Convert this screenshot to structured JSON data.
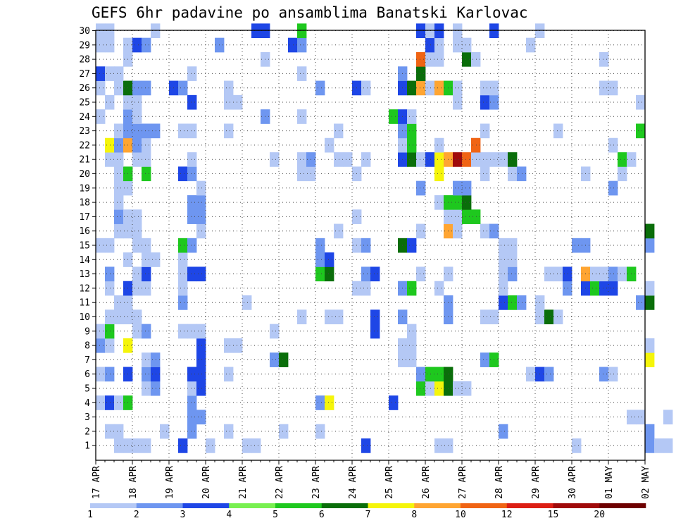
{
  "chart_data": {
    "type": "heatmap",
    "title": "GEFS 6hr padavine po ansamblima Banatski Karlovac",
    "y_ticks": [
      1,
      2,
      3,
      4,
      5,
      6,
      7,
      8,
      9,
      10,
      11,
      12,
      13,
      14,
      15,
      16,
      17,
      18,
      19,
      20,
      21,
      22,
      23,
      24,
      25,
      26,
      27,
      28,
      29,
      30
    ],
    "ylim": [
      0,
      30
    ],
    "x_ticks": [
      "17 APR",
      "18 APR",
      "19 APR",
      "20 APR",
      "21 APR",
      "22 APR",
      "23 APR",
      "24 APR",
      "25 APR",
      "26 APR",
      "27 APR",
      "28 APR",
      "29 APR",
      "30 APR",
      "01 MAY",
      "02 MAY"
    ],
    "x_steps_per_day": 4,
    "grid": true,
    "colorbar": {
      "levels": [
        "1",
        "2",
        "3",
        "4",
        "5",
        "6",
        "7",
        "8",
        "10",
        "12",
        "15",
        "20"
      ],
      "colors": [
        "#b4c8f5",
        "#6e96f0",
        "#1e46e6",
        "#78f050",
        "#1ec81e",
        "#0a6e0a",
        "#f5f50a",
        "#ffa532",
        "#f06414",
        "#dc1e14",
        "#a00a0a",
        "#6e0000"
      ]
    },
    "cells": [
      [
        1,
        2,
        1
      ],
      [
        1,
        3,
        1
      ],
      [
        1,
        4,
        1
      ],
      [
        1,
        5,
        1
      ],
      [
        1,
        9,
        3
      ],
      [
        1,
        12,
        1
      ],
      [
        1,
        16,
        1
      ],
      [
        1,
        17,
        1
      ],
      [
        1,
        29,
        3
      ],
      [
        1,
        37,
        1
      ],
      [
        1,
        38,
        1
      ],
      [
        1,
        52,
        1
      ],
      [
        1,
        60,
        2
      ],
      [
        1,
        61,
        1
      ],
      [
        1,
        62,
        1
      ],
      [
        1,
        70,
        7
      ],
      [
        1,
        71,
        1
      ],
      [
        2,
        1,
        1
      ],
      [
        2,
        2,
        1
      ],
      [
        2,
        7,
        1
      ],
      [
        2,
        10,
        2
      ],
      [
        2,
        14,
        1
      ],
      [
        2,
        20,
        1
      ],
      [
        2,
        24,
        1
      ],
      [
        2,
        44,
        2
      ],
      [
        2,
        60,
        2
      ],
      [
        3,
        10,
        2
      ],
      [
        3,
        11,
        2
      ],
      [
        3,
        58,
        1
      ],
      [
        3,
        59,
        1
      ],
      [
        3,
        62,
        1
      ],
      [
        4,
        0,
        1
      ],
      [
        4,
        1,
        3
      ],
      [
        4,
        2,
        1
      ],
      [
        4,
        3,
        5
      ],
      [
        4,
        10,
        2
      ],
      [
        4,
        24,
        2
      ],
      [
        4,
        25,
        7
      ],
      [
        4,
        32,
        3
      ],
      [
        5,
        5,
        1
      ],
      [
        5,
        6,
        2
      ],
      [
        5,
        10,
        1
      ],
      [
        5,
        11,
        3
      ],
      [
        5,
        35,
        5
      ],
      [
        5,
        36,
        1
      ],
      [
        5,
        37,
        7
      ],
      [
        5,
        38,
        6
      ],
      [
        5,
        39,
        1
      ],
      [
        5,
        40,
        1
      ],
      [
        6,
        0,
        1
      ],
      [
        6,
        1,
        2
      ],
      [
        6,
        3,
        3
      ],
      [
        6,
        5,
        2
      ],
      [
        6,
        6,
        3
      ],
      [
        6,
        10,
        3
      ],
      [
        6,
        11,
        3
      ],
      [
        6,
        14,
        1
      ],
      [
        6,
        35,
        2
      ],
      [
        6,
        36,
        5
      ],
      [
        6,
        37,
        5
      ],
      [
        6,
        38,
        6
      ],
      [
        6,
        47,
        1
      ],
      [
        6,
        48,
        3
      ],
      [
        6,
        49,
        2
      ],
      [
        6,
        55,
        2
      ],
      [
        6,
        56,
        1
      ],
      [
        7,
        5,
        1
      ],
      [
        7,
        6,
        2
      ],
      [
        7,
        11,
        3
      ],
      [
        7,
        19,
        2
      ],
      [
        7,
        20,
        6
      ],
      [
        7,
        33,
        1
      ],
      [
        7,
        34,
        1
      ],
      [
        7,
        42,
        2
      ],
      [
        7,
        43,
        5
      ],
      [
        7,
        60,
        7
      ],
      [
        8,
        0,
        2
      ],
      [
        8,
        1,
        1
      ],
      [
        8,
        3,
        7
      ],
      [
        8,
        11,
        3
      ],
      [
        8,
        14,
        1
      ],
      [
        8,
        15,
        1
      ],
      [
        8,
        33,
        1
      ],
      [
        8,
        34,
        1
      ],
      [
        8,
        60,
        1
      ],
      [
        9,
        0,
        1
      ],
      [
        9,
        1,
        5
      ],
      [
        9,
        4,
        1
      ],
      [
        9,
        5,
        2
      ],
      [
        9,
        9,
        1
      ],
      [
        9,
        10,
        1
      ],
      [
        9,
        11,
        1
      ],
      [
        9,
        19,
        1
      ],
      [
        9,
        30,
        3
      ],
      [
        9,
        34,
        1
      ],
      [
        10,
        1,
        1
      ],
      [
        10,
        2,
        1
      ],
      [
        10,
        3,
        1
      ],
      [
        10,
        4,
        1
      ],
      [
        10,
        22,
        1
      ],
      [
        10,
        25,
        1
      ],
      [
        10,
        26,
        1
      ],
      [
        10,
        30,
        3
      ],
      [
        10,
        33,
        2
      ],
      [
        10,
        38,
        2
      ],
      [
        10,
        42,
        1
      ],
      [
        10,
        43,
        1
      ],
      [
        10,
        48,
        1
      ],
      [
        10,
        49,
        6
      ],
      [
        10,
        50,
        1
      ],
      [
        11,
        2,
        1
      ],
      [
        11,
        3,
        1
      ],
      [
        11,
        9,
        2
      ],
      [
        11,
        16,
        1
      ],
      [
        11,
        38,
        2
      ],
      [
        11,
        44,
        3
      ],
      [
        11,
        45,
        5
      ],
      [
        11,
        46,
        2
      ],
      [
        11,
        48,
        1
      ],
      [
        11,
        59,
        2
      ],
      [
        11,
        60,
        6
      ],
      [
        12,
        1,
        1
      ],
      [
        12,
        3,
        3
      ],
      [
        12,
        4,
        1
      ],
      [
        12,
        5,
        1
      ],
      [
        12,
        9,
        1
      ],
      [
        12,
        28,
        1
      ],
      [
        12,
        29,
        1
      ],
      [
        12,
        33,
        2
      ],
      [
        12,
        34,
        5
      ],
      [
        12,
        37,
        1
      ],
      [
        12,
        44,
        1
      ],
      [
        12,
        51,
        2
      ],
      [
        12,
        53,
        3
      ],
      [
        12,
        54,
        5
      ],
      [
        12,
        55,
        3
      ],
      [
        12,
        56,
        3
      ],
      [
        12,
        60,
        1
      ],
      [
        13,
        1,
        2
      ],
      [
        13,
        4,
        1
      ],
      [
        13,
        5,
        3
      ],
      [
        13,
        9,
        1
      ],
      [
        13,
        10,
        3
      ],
      [
        13,
        11,
        3
      ],
      [
        13,
        24,
        5
      ],
      [
        13,
        25,
        6
      ],
      [
        13,
        29,
        2
      ],
      [
        13,
        30,
        3
      ],
      [
        13,
        35,
        1
      ],
      [
        13,
        38,
        1
      ],
      [
        13,
        44,
        1
      ],
      [
        13,
        45,
        2
      ],
      [
        13,
        49,
        1
      ],
      [
        13,
        50,
        1
      ],
      [
        13,
        51,
        3
      ],
      [
        13,
        53,
        8
      ],
      [
        13,
        54,
        1
      ],
      [
        13,
        55,
        1
      ],
      [
        13,
        56,
        2
      ],
      [
        13,
        57,
        1
      ],
      [
        13,
        58,
        5
      ],
      [
        14,
        3,
        1
      ],
      [
        14,
        5,
        1
      ],
      [
        14,
        6,
        1
      ],
      [
        14,
        9,
        1
      ],
      [
        14,
        24,
        2
      ],
      [
        14,
        25,
        3
      ],
      [
        14,
        44,
        1
      ],
      [
        14,
        45,
        1
      ],
      [
        15,
        0,
        1
      ],
      [
        15,
        1,
        1
      ],
      [
        15,
        4,
        1
      ],
      [
        15,
        5,
        1
      ],
      [
        15,
        9,
        5
      ],
      [
        15,
        10,
        2
      ],
      [
        15,
        24,
        2
      ],
      [
        15,
        28,
        1
      ],
      [
        15,
        29,
        2
      ],
      [
        15,
        33,
        6
      ],
      [
        15,
        34,
        3
      ],
      [
        15,
        44,
        1
      ],
      [
        15,
        45,
        1
      ],
      [
        15,
        52,
        2
      ],
      [
        15,
        53,
        2
      ],
      [
        15,
        60,
        2
      ],
      [
        16,
        2,
        1
      ],
      [
        16,
        3,
        1
      ],
      [
        16,
        4,
        1
      ],
      [
        16,
        11,
        1
      ],
      [
        16,
        26,
        1
      ],
      [
        16,
        35,
        1
      ],
      [
        16,
        38,
        8
      ],
      [
        16,
        39,
        1
      ],
      [
        16,
        42,
        1
      ],
      [
        16,
        43,
        2
      ],
      [
        16,
        60,
        6
      ],
      [
        17,
        2,
        2
      ],
      [
        17,
        3,
        1
      ],
      [
        17,
        4,
        1
      ],
      [
        17,
        10,
        2
      ],
      [
        17,
        11,
        2
      ],
      [
        17,
        28,
        1
      ],
      [
        17,
        38,
        1
      ],
      [
        17,
        39,
        1
      ],
      [
        17,
        40,
        5
      ],
      [
        17,
        41,
        5
      ],
      [
        18,
        2,
        1
      ],
      [
        18,
        10,
        2
      ],
      [
        18,
        11,
        2
      ],
      [
        18,
        37,
        1
      ],
      [
        18,
        38,
        5
      ],
      [
        18,
        39,
        5
      ],
      [
        18,
        40,
        6
      ],
      [
        19,
        2,
        1
      ],
      [
        19,
        3,
        1
      ],
      [
        19,
        11,
        1
      ],
      [
        19,
        35,
        2
      ],
      [
        19,
        39,
        2
      ],
      [
        19,
        40,
        2
      ],
      [
        19,
        56,
        2
      ],
      [
        20,
        2,
        1
      ],
      [
        20,
        3,
        5
      ],
      [
        20,
        5,
        5
      ],
      [
        20,
        9,
        3
      ],
      [
        20,
        10,
        2
      ],
      [
        20,
        22,
        1
      ],
      [
        20,
        23,
        1
      ],
      [
        20,
        28,
        1
      ],
      [
        20,
        37,
        7
      ],
      [
        20,
        42,
        1
      ],
      [
        20,
        45,
        1
      ],
      [
        20,
        46,
        2
      ],
      [
        20,
        53,
        1
      ],
      [
        20,
        57,
        1
      ],
      [
        21,
        1,
        1
      ],
      [
        21,
        2,
        1
      ],
      [
        21,
        4,
        1
      ],
      [
        21,
        5,
        1
      ],
      [
        21,
        10,
        1
      ],
      [
        21,
        19,
        1
      ],
      [
        21,
        22,
        1
      ],
      [
        21,
        23,
        2
      ],
      [
        21,
        26,
        1
      ],
      [
        21,
        27,
        1
      ],
      [
        21,
        29,
        1
      ],
      [
        21,
        33,
        3
      ],
      [
        21,
        34,
        6
      ],
      [
        21,
        35,
        1
      ],
      [
        21,
        36,
        3
      ],
      [
        21,
        37,
        7
      ],
      [
        21,
        38,
        8
      ],
      [
        21,
        39,
        11
      ],
      [
        21,
        40,
        9
      ],
      [
        21,
        41,
        1
      ],
      [
        21,
        42,
        1
      ],
      [
        21,
        43,
        1
      ],
      [
        21,
        44,
        1
      ],
      [
        21,
        45,
        6
      ],
      [
        21,
        57,
        5
      ],
      [
        21,
        58,
        1
      ],
      [
        22,
        1,
        7
      ],
      [
        22,
        2,
        2
      ],
      [
        22,
        3,
        8
      ],
      [
        22,
        4,
        2
      ],
      [
        22,
        5,
        1
      ],
      [
        22,
        25,
        1
      ],
      [
        22,
        33,
        1
      ],
      [
        22,
        34,
        5
      ],
      [
        22,
        37,
        1
      ],
      [
        22,
        41,
        9
      ],
      [
        22,
        56,
        1
      ],
      [
        23,
        2,
        1
      ],
      [
        23,
        3,
        2
      ],
      [
        23,
        4,
        2
      ],
      [
        23,
        5,
        2
      ],
      [
        23,
        6,
        2
      ],
      [
        23,
        9,
        1
      ],
      [
        23,
        10,
        1
      ],
      [
        23,
        14,
        1
      ],
      [
        23,
        26,
        1
      ],
      [
        23,
        33,
        2
      ],
      [
        23,
        34,
        5
      ],
      [
        23,
        42,
        1
      ],
      [
        23,
        50,
        1
      ],
      [
        23,
        59,
        5
      ],
      [
        24,
        0,
        1
      ],
      [
        24,
        3,
        2
      ],
      [
        24,
        4,
        1
      ],
      [
        24,
        18,
        2
      ],
      [
        24,
        22,
        1
      ],
      [
        24,
        32,
        5
      ],
      [
        24,
        33,
        3
      ],
      [
        24,
        34,
        1
      ],
      [
        25,
        1,
        1
      ],
      [
        25,
        3,
        1
      ],
      [
        25,
        4,
        1
      ],
      [
        25,
        10,
        3
      ],
      [
        25,
        14,
        1
      ],
      [
        25,
        15,
        1
      ],
      [
        25,
        39,
        1
      ],
      [
        25,
        42,
        3
      ],
      [
        25,
        43,
        2
      ],
      [
        25,
        59,
        1
      ],
      [
        26,
        0,
        1
      ],
      [
        26,
        2,
        1
      ],
      [
        26,
        3,
        6
      ],
      [
        26,
        4,
        2
      ],
      [
        26,
        5,
        2
      ],
      [
        26,
        8,
        3
      ],
      [
        26,
        9,
        2
      ],
      [
        26,
        14,
        1
      ],
      [
        26,
        24,
        2
      ],
      [
        26,
        28,
        3
      ],
      [
        26,
        29,
        1
      ],
      [
        26,
        33,
        3
      ],
      [
        26,
        34,
        6
      ],
      [
        26,
        35,
        8
      ],
      [
        26,
        36,
        1
      ],
      [
        26,
        37,
        8
      ],
      [
        26,
        38,
        5
      ],
      [
        26,
        39,
        1
      ],
      [
        26,
        42,
        1
      ],
      [
        26,
        43,
        1
      ],
      [
        26,
        55,
        1
      ],
      [
        26,
        56,
        1
      ],
      [
        27,
        0,
        3
      ],
      [
        27,
        1,
        1
      ],
      [
        27,
        2,
        1
      ],
      [
        27,
        10,
        1
      ],
      [
        27,
        22,
        1
      ],
      [
        27,
        33,
        2
      ],
      [
        27,
        35,
        6
      ],
      [
        28,
        3,
        1
      ],
      [
        28,
        18,
        1
      ],
      [
        28,
        35,
        9
      ],
      [
        28,
        36,
        1
      ],
      [
        28,
        37,
        1
      ],
      [
        28,
        40,
        6
      ],
      [
        28,
        41,
        1
      ],
      [
        28,
        55,
        1
      ],
      [
        29,
        0,
        1
      ],
      [
        29,
        1,
        1
      ],
      [
        29,
        3,
        1
      ],
      [
        29,
        4,
        3
      ],
      [
        29,
        5,
        2
      ],
      [
        29,
        13,
        2
      ],
      [
        29,
        21,
        3
      ],
      [
        29,
        22,
        2
      ],
      [
        29,
        36,
        3
      ],
      [
        29,
        37,
        1
      ],
      [
        29,
        39,
        1
      ],
      [
        29,
        40,
        1
      ],
      [
        29,
        47,
        1
      ],
      [
        30,
        0,
        1
      ],
      [
        30,
        1,
        1
      ],
      [
        30,
        6,
        1
      ],
      [
        30,
        17,
        3
      ],
      [
        30,
        18,
        3
      ],
      [
        30,
        22,
        5
      ],
      [
        30,
        35,
        3
      ],
      [
        30,
        36,
        1
      ],
      [
        30,
        37,
        3
      ],
      [
        30,
        39,
        1
      ],
      [
        30,
        43,
        3
      ],
      [
        30,
        48,
        1
      ]
    ]
  }
}
